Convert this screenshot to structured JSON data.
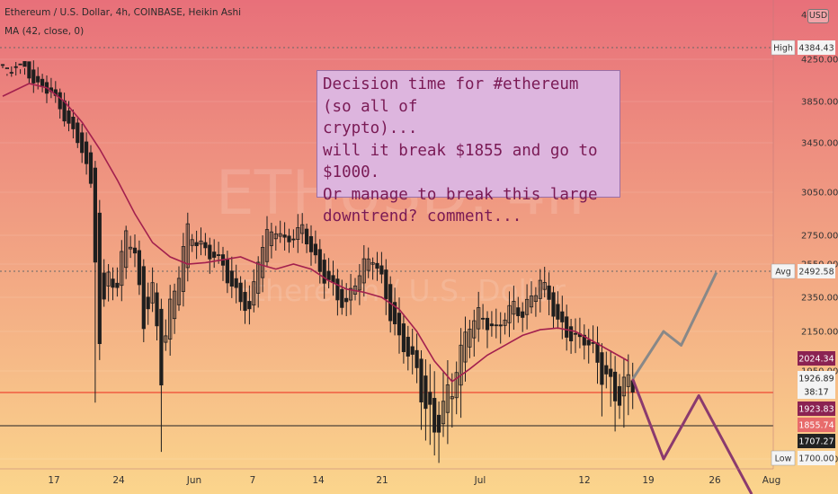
{
  "header": {
    "title": "Ethereum / U.S. Dollar, 4h, COINBASE, Heikin Ashi",
    "indicator": "MA (42, close, 0)"
  },
  "watermark": {
    "symbol": "ETHUSD, 4h",
    "name": "Ethereum / U.S. Dollar"
  },
  "annotation": {
    "text": "Decision time for #ethereum (so all of\ncrypto)...\nwill it break $1855 and go to $1000.\nOr manage to break this large\ndowntrend? comment..."
  },
  "currency": "USD",
  "colors": {
    "background_top": "#e8707a",
    "background_bottom": "#fbd58c",
    "candle_fill": "#1e1e1e",
    "ma_line": "#a3204e",
    "support_line": "#f05c40",
    "projection_up": "#888888",
    "projection_down": "#8b3a6e"
  },
  "chart_data": {
    "type": "candlestick",
    "title": "Ethereum / U.S. Dollar, 4h, COINBASE, Heikin Ashi",
    "ylim": [
      1640,
      4460
    ],
    "x_axis_labels": [
      "17",
      "24",
      "Jun",
      "7",
      "14",
      "21",
      "Jul",
      "12",
      "19",
      "26",
      "Aug"
    ],
    "y_axis_ticks": [
      4250,
      3850,
      3450,
      3050,
      2750,
      2550,
      2350,
      2150,
      1950,
      1700
    ],
    "y_axis_labels": [
      "4250.00",
      "3850.00",
      "3450.00",
      "3050.00",
      "2750.00",
      "2550.00",
      "2350.00",
      "2150.00",
      "1950.00",
      "1700.00"
    ],
    "price_labels": [
      {
        "label": "High",
        "value": 4384.43,
        "text": "4384.43"
      },
      {
        "label": "Avg",
        "value": 2492.58,
        "text": "2492.58"
      },
      {
        "label": "",
        "value": 2024.34,
        "text": "2024.34"
      },
      {
        "label": "",
        "value": 1926.89,
        "text": "1926.89"
      },
      {
        "label": "",
        "value": 1880,
        "text": "38:17"
      },
      {
        "label": "",
        "value": 1923.83,
        "text": "1923.83"
      },
      {
        "label": "",
        "value": 1855.74,
        "text": "1855.74"
      },
      {
        "label": "",
        "value": 1707.27,
        "text": "1707.27"
      },
      {
        "label": "Low",
        "value": 1700.0,
        "text": "1700.00"
      }
    ],
    "levels": [
      {
        "value": 1855,
        "style": "support"
      },
      {
        "value": 1707,
        "style": "flat"
      }
    ],
    "price_path": [
      [
        0,
        4200
      ],
      [
        2,
        4384
      ],
      [
        5,
        4150
      ],
      [
        8,
        4000
      ],
      [
        11,
        3950
      ],
      [
        14,
        3700
      ],
      [
        18,
        3400
      ],
      [
        20,
        3100
      ],
      [
        22,
        2100
      ],
      [
        24,
        2500
      ],
      [
        26,
        2400
      ],
      [
        28,
        2800
      ],
      [
        30,
        2600
      ],
      [
        32,
        2200
      ],
      [
        34,
        2400
      ],
      [
        36,
        1950
      ],
      [
        38,
        2300
      ],
      [
        40,
        2500
      ],
      [
        42,
        2800
      ],
      [
        44,
        2700
      ],
      [
        46,
        2650
      ],
      [
        48,
        2600
      ],
      [
        50,
        2550
      ],
      [
        52,
        2400
      ],
      [
        54,
        2350
      ],
      [
        56,
        2250
      ],
      [
        58,
        2600
      ],
      [
        60,
        2750
      ],
      [
        62,
        2800
      ],
      [
        64,
        2700
      ],
      [
        66,
        2750
      ],
      [
        68,
        2800
      ],
      [
        70,
        2650
      ],
      [
        72,
        2500
      ],
      [
        74,
        2450
      ],
      [
        76,
        2350
      ],
      [
        78,
        2300
      ],
      [
        80,
        2450
      ],
      [
        82,
        2550
      ],
      [
        84,
        2600
      ],
      [
        86,
        2450
      ],
      [
        88,
        2250
      ],
      [
        90,
        2100
      ],
      [
        92,
        2050
      ],
      [
        94,
        1950
      ],
      [
        96,
        1850
      ],
      [
        98,
        1780
      ],
      [
        100,
        1850
      ],
      [
        102,
        1900
      ],
      [
        104,
        2050
      ],
      [
        106,
        2200
      ],
      [
        108,
        2250
      ],
      [
        110,
        2200
      ],
      [
        112,
        2150
      ],
      [
        114,
        2250
      ],
      [
        116,
        2300
      ],
      [
        118,
        2250
      ],
      [
        120,
        2350
      ],
      [
        122,
        2450
      ],
      [
        124,
        2350
      ],
      [
        126,
        2200
      ],
      [
        128,
        2150
      ],
      [
        130,
        2100
      ],
      [
        132,
        2120
      ],
      [
        134,
        2050
      ],
      [
        136,
        1950
      ],
      [
        138,
        1900
      ],
      [
        140,
        1880
      ],
      [
        142,
        1920
      ],
      [
        143,
        1927
      ]
    ],
    "wicks": [
      {
        "i": 21,
        "low": 1860
      },
      {
        "i": 36,
        "low": 1720
      },
      {
        "i": 98,
        "low": 1710
      },
      {
        "i": 97,
        "low": 1740
      }
    ],
    "ma_series": [
      [
        0,
        3900
      ],
      [
        6,
        4020
      ],
      [
        10,
        3980
      ],
      [
        14,
        3850
      ],
      [
        18,
        3650
      ],
      [
        22,
        3400
      ],
      [
        26,
        3150
      ],
      [
        30,
        2900
      ],
      [
        34,
        2700
      ],
      [
        38,
        2600
      ],
      [
        42,
        2550
      ],
      [
        46,
        2560
      ],
      [
        50,
        2580
      ],
      [
        54,
        2600
      ],
      [
        58,
        2550
      ],
      [
        62,
        2520
      ],
      [
        66,
        2550
      ],
      [
        70,
        2520
      ],
      [
        74,
        2450
      ],
      [
        78,
        2400
      ],
      [
        82,
        2380
      ],
      [
        86,
        2350
      ],
      [
        90,
        2280
      ],
      [
        94,
        2150
      ],
      [
        98,
        2000
      ],
      [
        102,
        1920
      ],
      [
        106,
        1960
      ],
      [
        110,
        2030
      ],
      [
        114,
        2080
      ],
      [
        118,
        2130
      ],
      [
        122,
        2160
      ],
      [
        126,
        2170
      ],
      [
        130,
        2150
      ],
      [
        134,
        2100
      ],
      [
        138,
        2050
      ],
      [
        142,
        2000
      ]
    ],
    "projections": [
      {
        "name": "up",
        "points": [
          [
            143,
            1927
          ],
          [
            150,
            2150
          ],
          [
            154,
            2080
          ],
          [
            162,
            2500
          ]
        ]
      },
      {
        "name": "down",
        "points": [
          [
            143,
            1927
          ],
          [
            150,
            1700
          ],
          [
            158,
            1880
          ],
          [
            170,
            1600
          ]
        ]
      }
    ]
  }
}
